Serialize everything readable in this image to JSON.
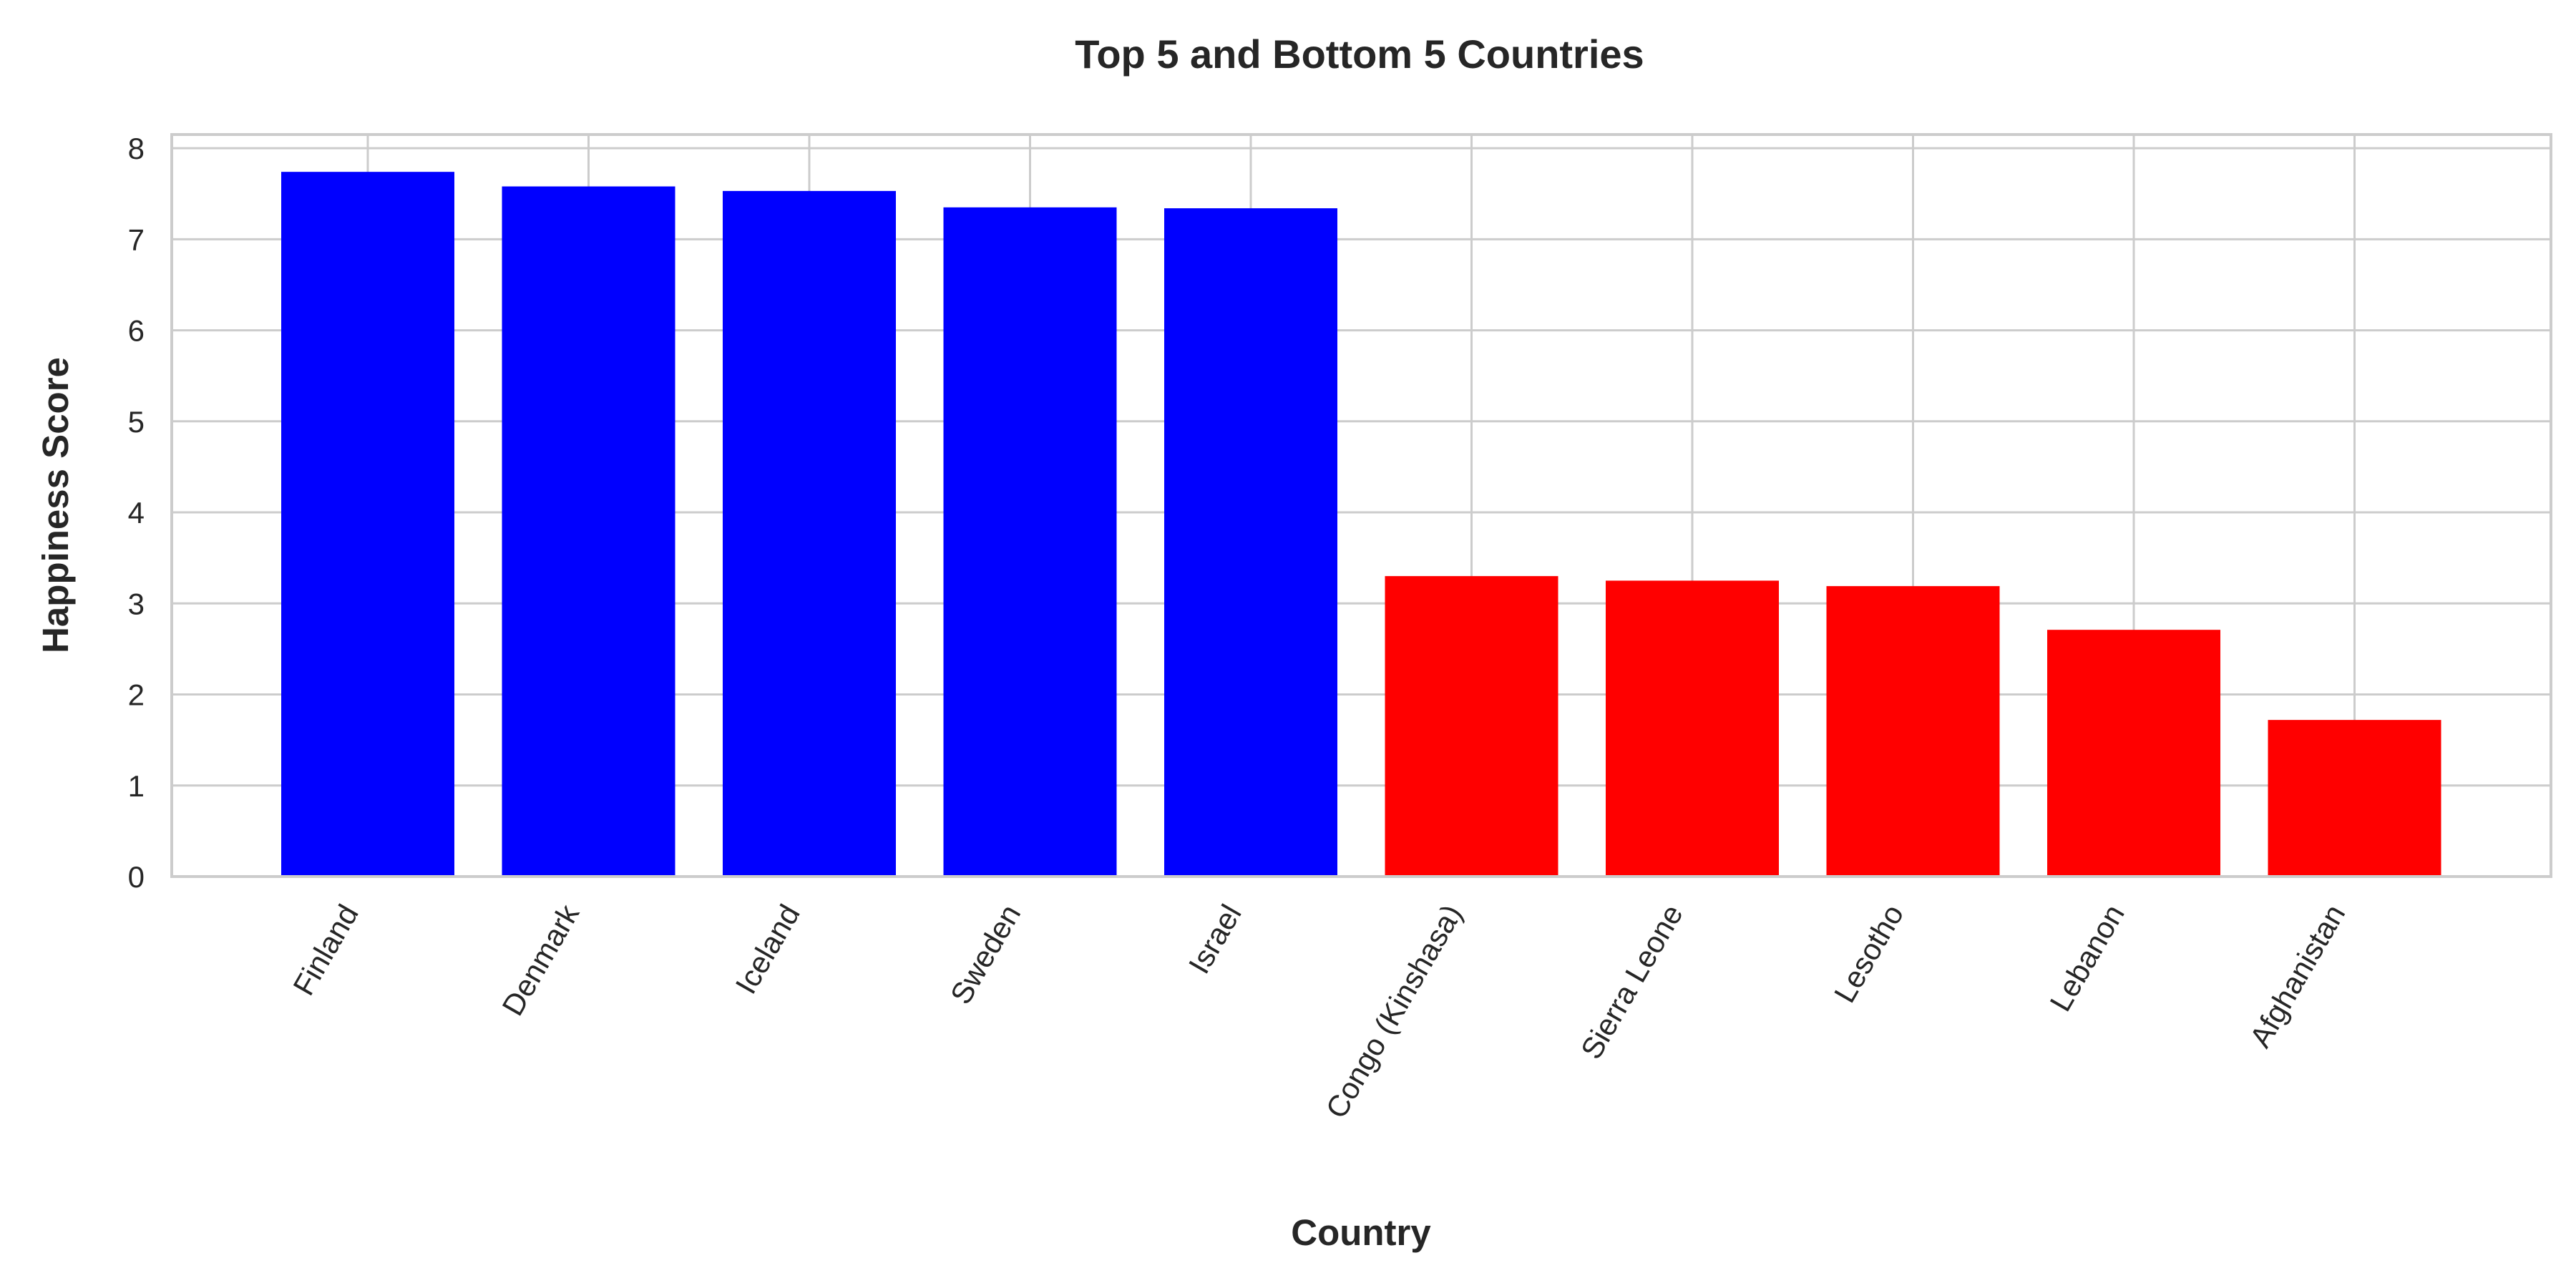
{
  "chart_data": {
    "type": "bar",
    "title": "Top 5 and Bottom 5 Countries",
    "xlabel": "Country",
    "ylabel": "Happiness Score",
    "categories": [
      "Finland",
      "Denmark",
      "Iceland",
      "Sweden",
      "Israel",
      "Congo (Kinshasa)",
      "Sierra Leone",
      "Lesotho",
      "Lebanon",
      "Afghanistan"
    ],
    "values": [
      7.74,
      7.58,
      7.53,
      7.35,
      7.34,
      3.3,
      3.25,
      3.19,
      2.71,
      1.72
    ],
    "bar_colors": [
      "#0000ff",
      "#0000ff",
      "#0000ff",
      "#0000ff",
      "#0000ff",
      "#ff0000",
      "#ff0000",
      "#ff0000",
      "#ff0000",
      "#ff0000"
    ],
    "ylim": [
      0,
      8.15
    ],
    "yticks": [
      "0",
      "1",
      "2",
      "3",
      "4",
      "5",
      "6",
      "7",
      "8"
    ],
    "grid": true,
    "legend": "none"
  },
  "colors": {
    "top": "#0000ff",
    "bottom": "#ff0000",
    "grid": "#cccccc",
    "text": "#262626"
  }
}
